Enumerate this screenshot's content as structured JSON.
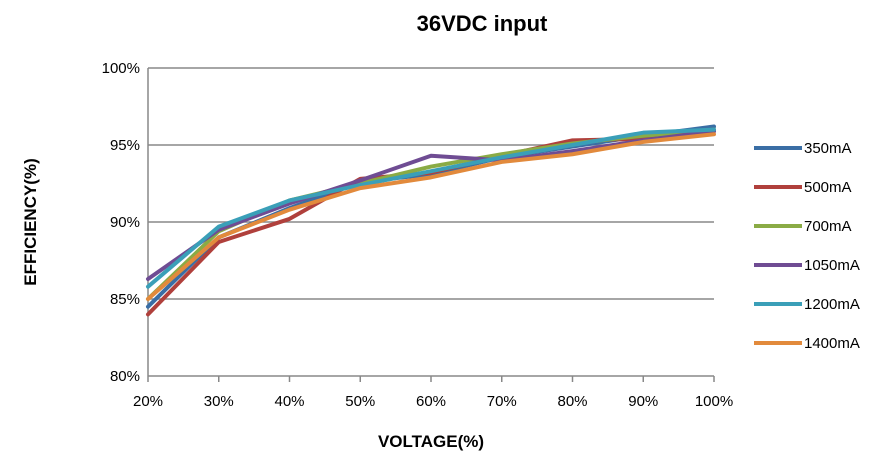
{
  "chart_data": {
    "type": "line",
    "title": "36VDC input",
    "xlabel": "VOLTAGE(%)",
    "ylabel": "EFFICIENCY(%)",
    "categories": [
      "20%",
      "30%",
      "40%",
      "50%",
      "60%",
      "70%",
      "80%",
      "90%",
      "100%"
    ],
    "x": [
      20,
      30,
      40,
      50,
      60,
      70,
      80,
      90,
      100
    ],
    "ylim": [
      80,
      100
    ],
    "yticks": [
      80,
      85,
      90,
      95,
      100
    ],
    "ytick_labels": [
      "80%",
      "85%",
      "90%",
      "95%",
      "100%"
    ],
    "grid": "horizontal",
    "legend_position": "right",
    "series": [
      {
        "name": "350mA",
        "color": "#3a6ea5",
        "values": [
          84.5,
          89.0,
          90.9,
          92.6,
          93.1,
          94.2,
          94.9,
          95.6,
          96.2
        ]
      },
      {
        "name": "500mA",
        "color": "#b0403c",
        "values": [
          84.0,
          88.7,
          90.2,
          92.8,
          93.2,
          94.3,
          95.3,
          95.4,
          95.9
        ]
      },
      {
        "name": "700mA",
        "color": "#8aab45",
        "values": [
          85.0,
          89.4,
          91.4,
          92.5,
          93.6,
          94.4,
          95.1,
          95.6,
          96.0
        ]
      },
      {
        "name": "1050mA",
        "color": "#6f4c93",
        "values": [
          86.3,
          89.5,
          91.2,
          92.7,
          94.3,
          94.0,
          94.6,
          95.3,
          95.9
        ]
      },
      {
        "name": "1200mA",
        "color": "#3a9fb8",
        "values": [
          85.8,
          89.7,
          91.4,
          92.4,
          93.3,
          94.2,
          95.0,
          95.8,
          96.0
        ]
      },
      {
        "name": "1400mA",
        "color": "#e28a3c",
        "values": [
          85.0,
          89.0,
          90.8,
          92.2,
          92.9,
          93.9,
          94.4,
          95.2,
          95.7
        ]
      }
    ]
  }
}
